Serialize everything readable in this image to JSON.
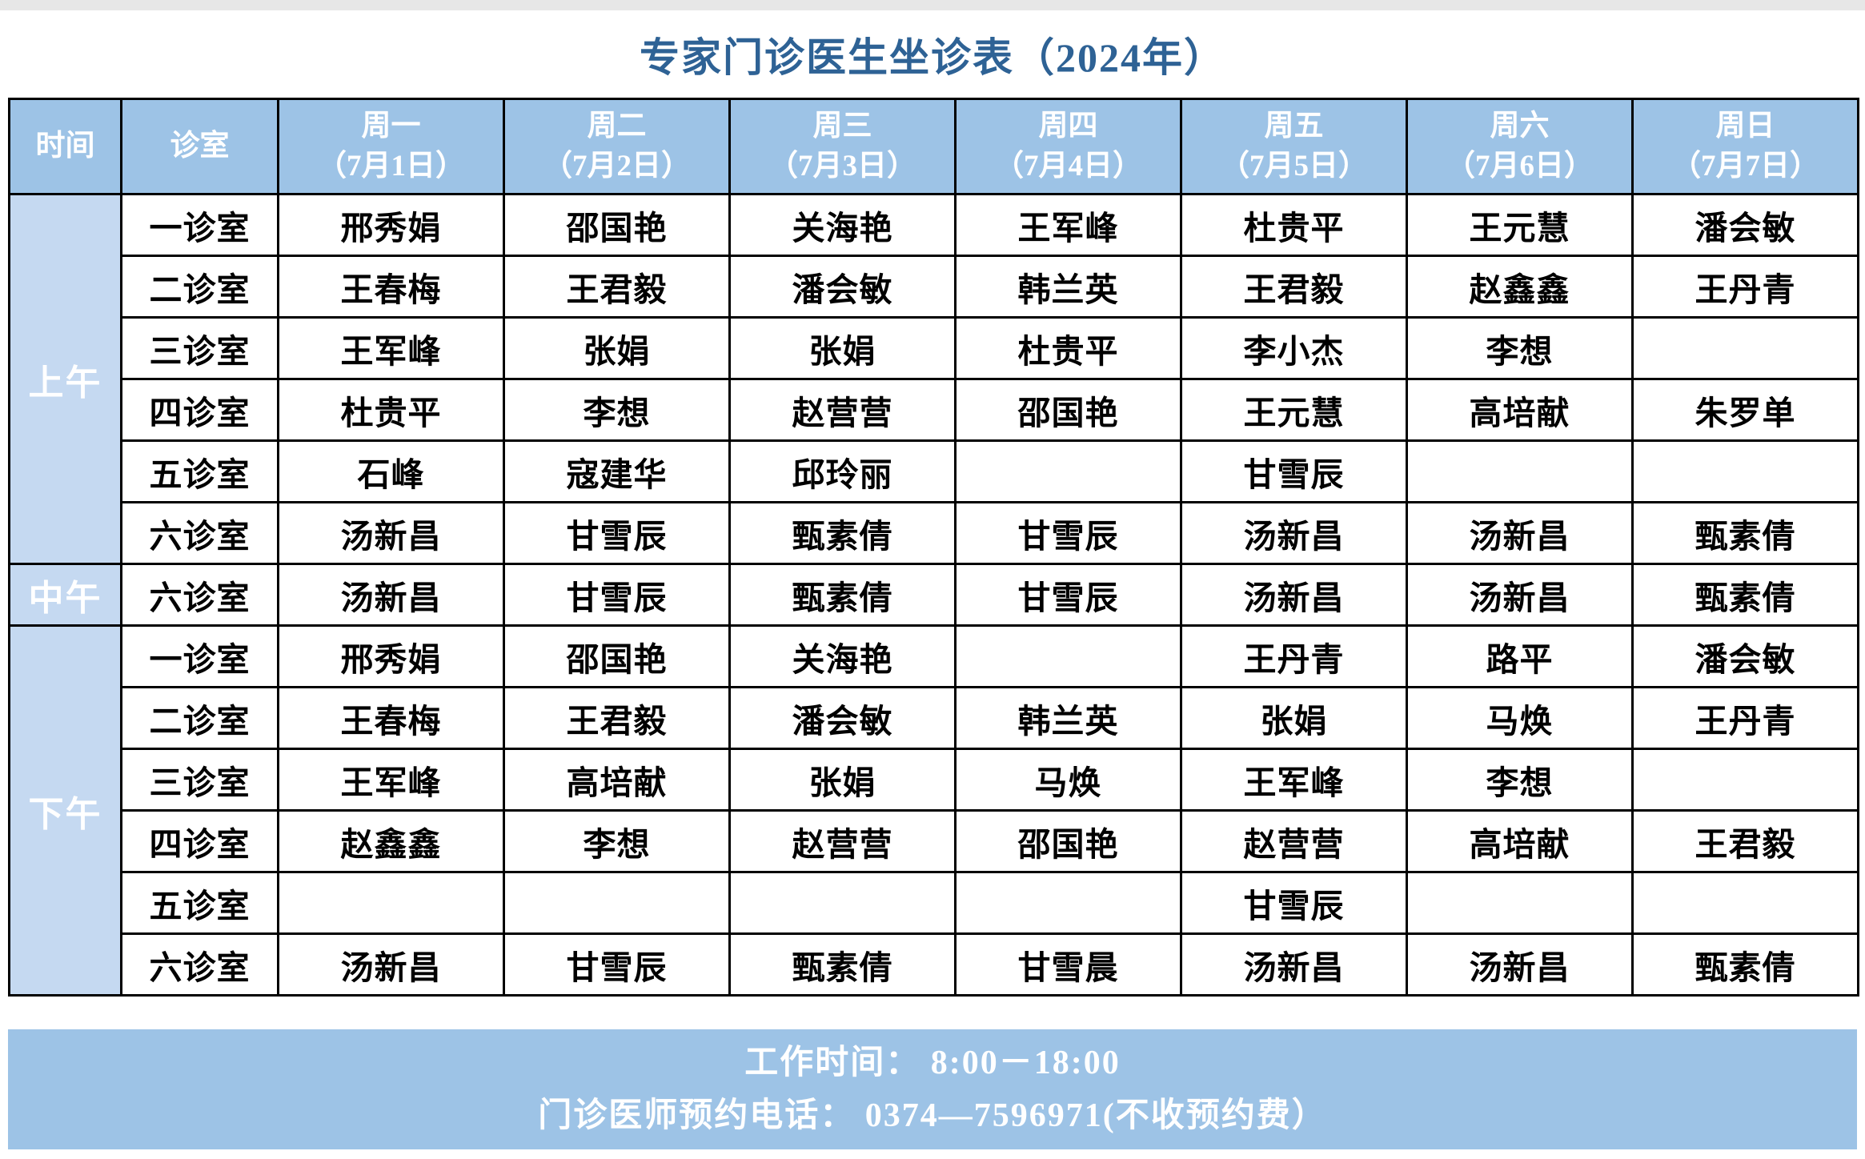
{
  "title": "专家门诊医生坐诊表（2024年）",
  "table": {
    "headers": {
      "time": "时间",
      "room": "诊室",
      "days": [
        {
          "weekday": "周一",
          "date": "（7月1日）"
        },
        {
          "weekday": "周二",
          "date": "（7月2日）"
        },
        {
          "weekday": "周三",
          "date": "（7月3日）"
        },
        {
          "weekday": "周四",
          "date": "（7月4日）"
        },
        {
          "weekday": "周五",
          "date": "（7月5日）"
        },
        {
          "weekday": "周六",
          "date": "（7月6日）"
        },
        {
          "weekday": "周日",
          "date": "（7月7日）"
        }
      ]
    },
    "sections": [
      {
        "period": "上午",
        "rows": [
          {
            "room": "一诊室",
            "doctors": [
              "邢秀娟",
              "邵国艳",
              "关海艳",
              "王军峰",
              "杜贵平",
              "王元慧",
              "潘会敏"
            ]
          },
          {
            "room": "二诊室",
            "doctors": [
              "王春梅",
              "王君毅",
              "潘会敏",
              "韩兰英",
              "王君毅",
              "赵鑫鑫",
              "王丹青"
            ]
          },
          {
            "room": "三诊室",
            "doctors": [
              "王军峰",
              "张娟",
              "张娟",
              "杜贵平",
              "李小杰",
              "李想",
              ""
            ]
          },
          {
            "room": "四诊室",
            "doctors": [
              "杜贵平",
              "李想",
              "赵营营",
              "邵国艳",
              "王元慧",
              "高培献",
              "朱罗单"
            ]
          },
          {
            "room": "五诊室",
            "doctors": [
              "石峰",
              "寇建华",
              "邱玲丽",
              "",
              "甘雪辰",
              "",
              ""
            ]
          },
          {
            "room": "六诊室",
            "doctors": [
              "汤新昌",
              "甘雪辰",
              "甄素倩",
              "甘雪辰",
              "汤新昌",
              "汤新昌",
              "甄素倩"
            ]
          }
        ]
      },
      {
        "period": "中午",
        "rows": [
          {
            "room": "六诊室",
            "doctors": [
              "汤新昌",
              "甘雪辰",
              "甄素倩",
              "甘雪辰",
              "汤新昌",
              "汤新昌",
              "甄素倩"
            ]
          }
        ]
      },
      {
        "period": "下午",
        "rows": [
          {
            "room": "一诊室",
            "doctors": [
              "邢秀娟",
              "邵国艳",
              "关海艳",
              "",
              "王丹青",
              "路平",
              "潘会敏"
            ]
          },
          {
            "room": "二诊室",
            "doctors": [
              "王春梅",
              "王君毅",
              "潘会敏",
              "韩兰英",
              "张娟",
              "马焕",
              "王丹青"
            ]
          },
          {
            "room": "三诊室",
            "doctors": [
              "王军峰",
              "高培献",
              "张娟",
              "马焕",
              "王军峰",
              "李想",
              ""
            ]
          },
          {
            "room": "四诊室",
            "doctors": [
              "赵鑫鑫",
              "李想",
              "赵营营",
              "邵国艳",
              "赵营营",
              "高培献",
              "王君毅"
            ]
          },
          {
            "room": "五诊室",
            "doctors": [
              "",
              "",
              "",
              "",
              "甘雪辰",
              "",
              ""
            ]
          },
          {
            "room": "六诊室",
            "doctors": [
              "汤新昌",
              "甘雪辰",
              "甄素倩",
              "甘雪晨",
              "汤新昌",
              "汤新昌",
              "甄素倩"
            ]
          }
        ]
      }
    ]
  },
  "footer": {
    "line1": "工作时间： 8:00－18:00",
    "line2": "门诊医师预约电话： 0374—7596971(不收预约费）"
  },
  "colors": {
    "header_bg": "#9dc3e6",
    "period_column_bg": "#c5d9f1",
    "footer_bg": "#9dc3e6",
    "title_text": "#2e6295",
    "header_text": "#ffffff",
    "body_text": "#000000",
    "grid_border": "#000000"
  }
}
